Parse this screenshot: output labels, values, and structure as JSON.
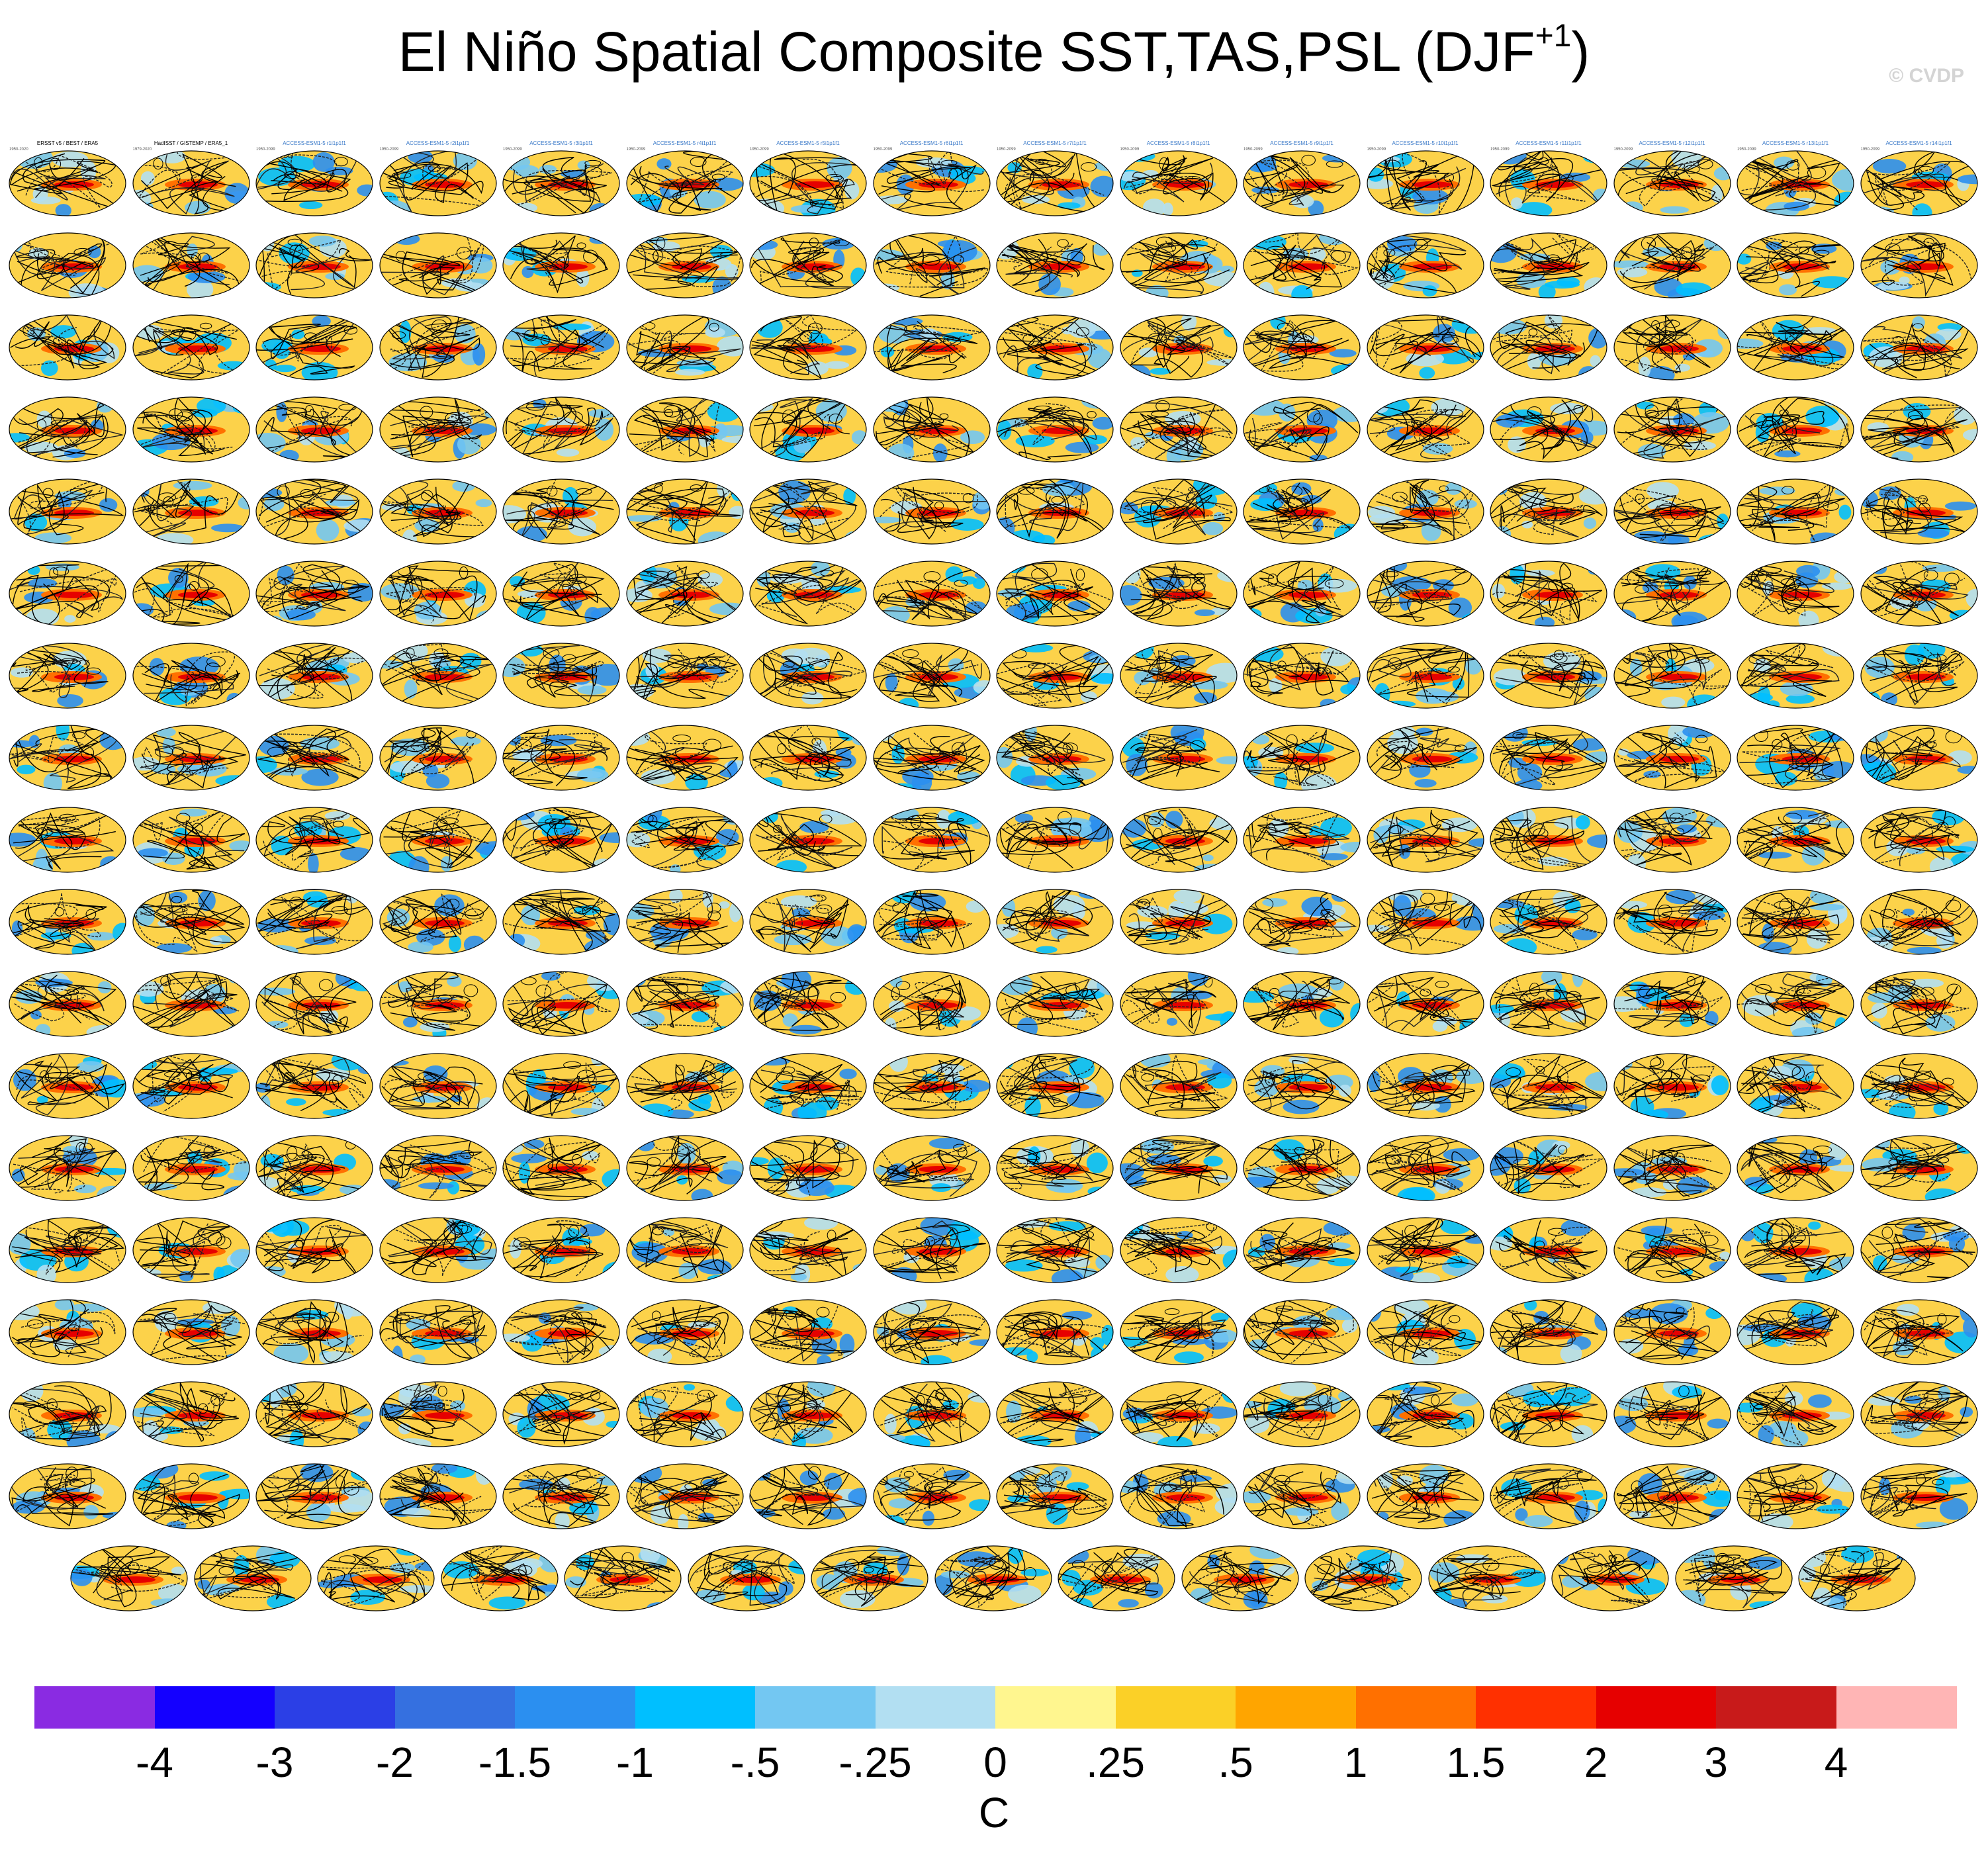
{
  "title": {
    "main": "El Niño Spatial Composite SST,TAS,PSL (DJF",
    "superscript": "+1",
    "close": ")"
  },
  "watermark": "© CVDP",
  "panel_grid": {
    "rows_full": 17,
    "cols_full": 16,
    "last_row_count": 15
  },
  "panels": [
    {
      "title": "ERSST v5 / BEST / ERA5",
      "years": "1950-2020",
      "obs": true
    },
    {
      "title": "HadISST / GISTEMP / ERA5_1",
      "years": "1979-2020",
      "obs": true
    },
    {
      "title": "ACCESS-ESM1-5 r1i1p1f1",
      "years": "1950-2099"
    },
    {
      "title": "ACCESS-ESM1-5 r2i1p1f1",
      "years": "1950-2099"
    },
    {
      "title": "ACCESS-ESM1-5 r3i1p1f1",
      "years": "1950-2099"
    },
    {
      "title": "ACCESS-ESM1-5 r4i1p1f1",
      "years": "1950-2099"
    },
    {
      "title": "ACCESS-ESM1-5 r5i1p1f1",
      "years": "1950-2099"
    },
    {
      "title": "ACCESS-ESM1-5 r6i1p1f1",
      "years": "1950-2099"
    },
    {
      "title": "ACCESS-ESM1-5 r7i1p1f1",
      "years": "1950-2099"
    },
    {
      "title": "ACCESS-ESM1-5 r8i1p1f1",
      "years": "1950-2099"
    },
    {
      "title": "ACCESS-ESM1-5 r9i1p1f1",
      "years": "1950-2099"
    },
    {
      "title": "ACCESS-ESM1-5 r10i1p1f1",
      "years": "1950-2099"
    },
    {
      "title": "ACCESS-ESM1-5 r11i1p1f1",
      "years": "1950-2099"
    },
    {
      "title": "ACCESS-ESM1-5 r12i1p1f1",
      "years": "1950-2099"
    },
    {
      "title": "ACCESS-ESM1-5 r13i1p1f1",
      "years": "1950-2099"
    },
    {
      "title": "ACCESS-ESM1-5 r14i1p1f1",
      "years": "1950-2099"
    }
  ],
  "colorbar": {
    "colors": [
      "#8a2be2",
      "#1400ff",
      "#2b3fe6",
      "#3570e0",
      "#2b8ff0",
      "#00bfff",
      "#73c7f2",
      "#b2dff2",
      "#fff68f",
      "#fbd027",
      "#ffa500",
      "#ff7000",
      "#ff3000",
      "#e60000",
      "#c81a1a",
      "#ffb5b5"
    ],
    "labels": [
      "-4",
      "-3",
      "-2",
      "-1.5",
      "-1",
      "-.5",
      "-.25",
      "0",
      ".25",
      ".5",
      "1",
      "1.5",
      "2",
      "3",
      "4"
    ],
    "units": "C"
  }
}
